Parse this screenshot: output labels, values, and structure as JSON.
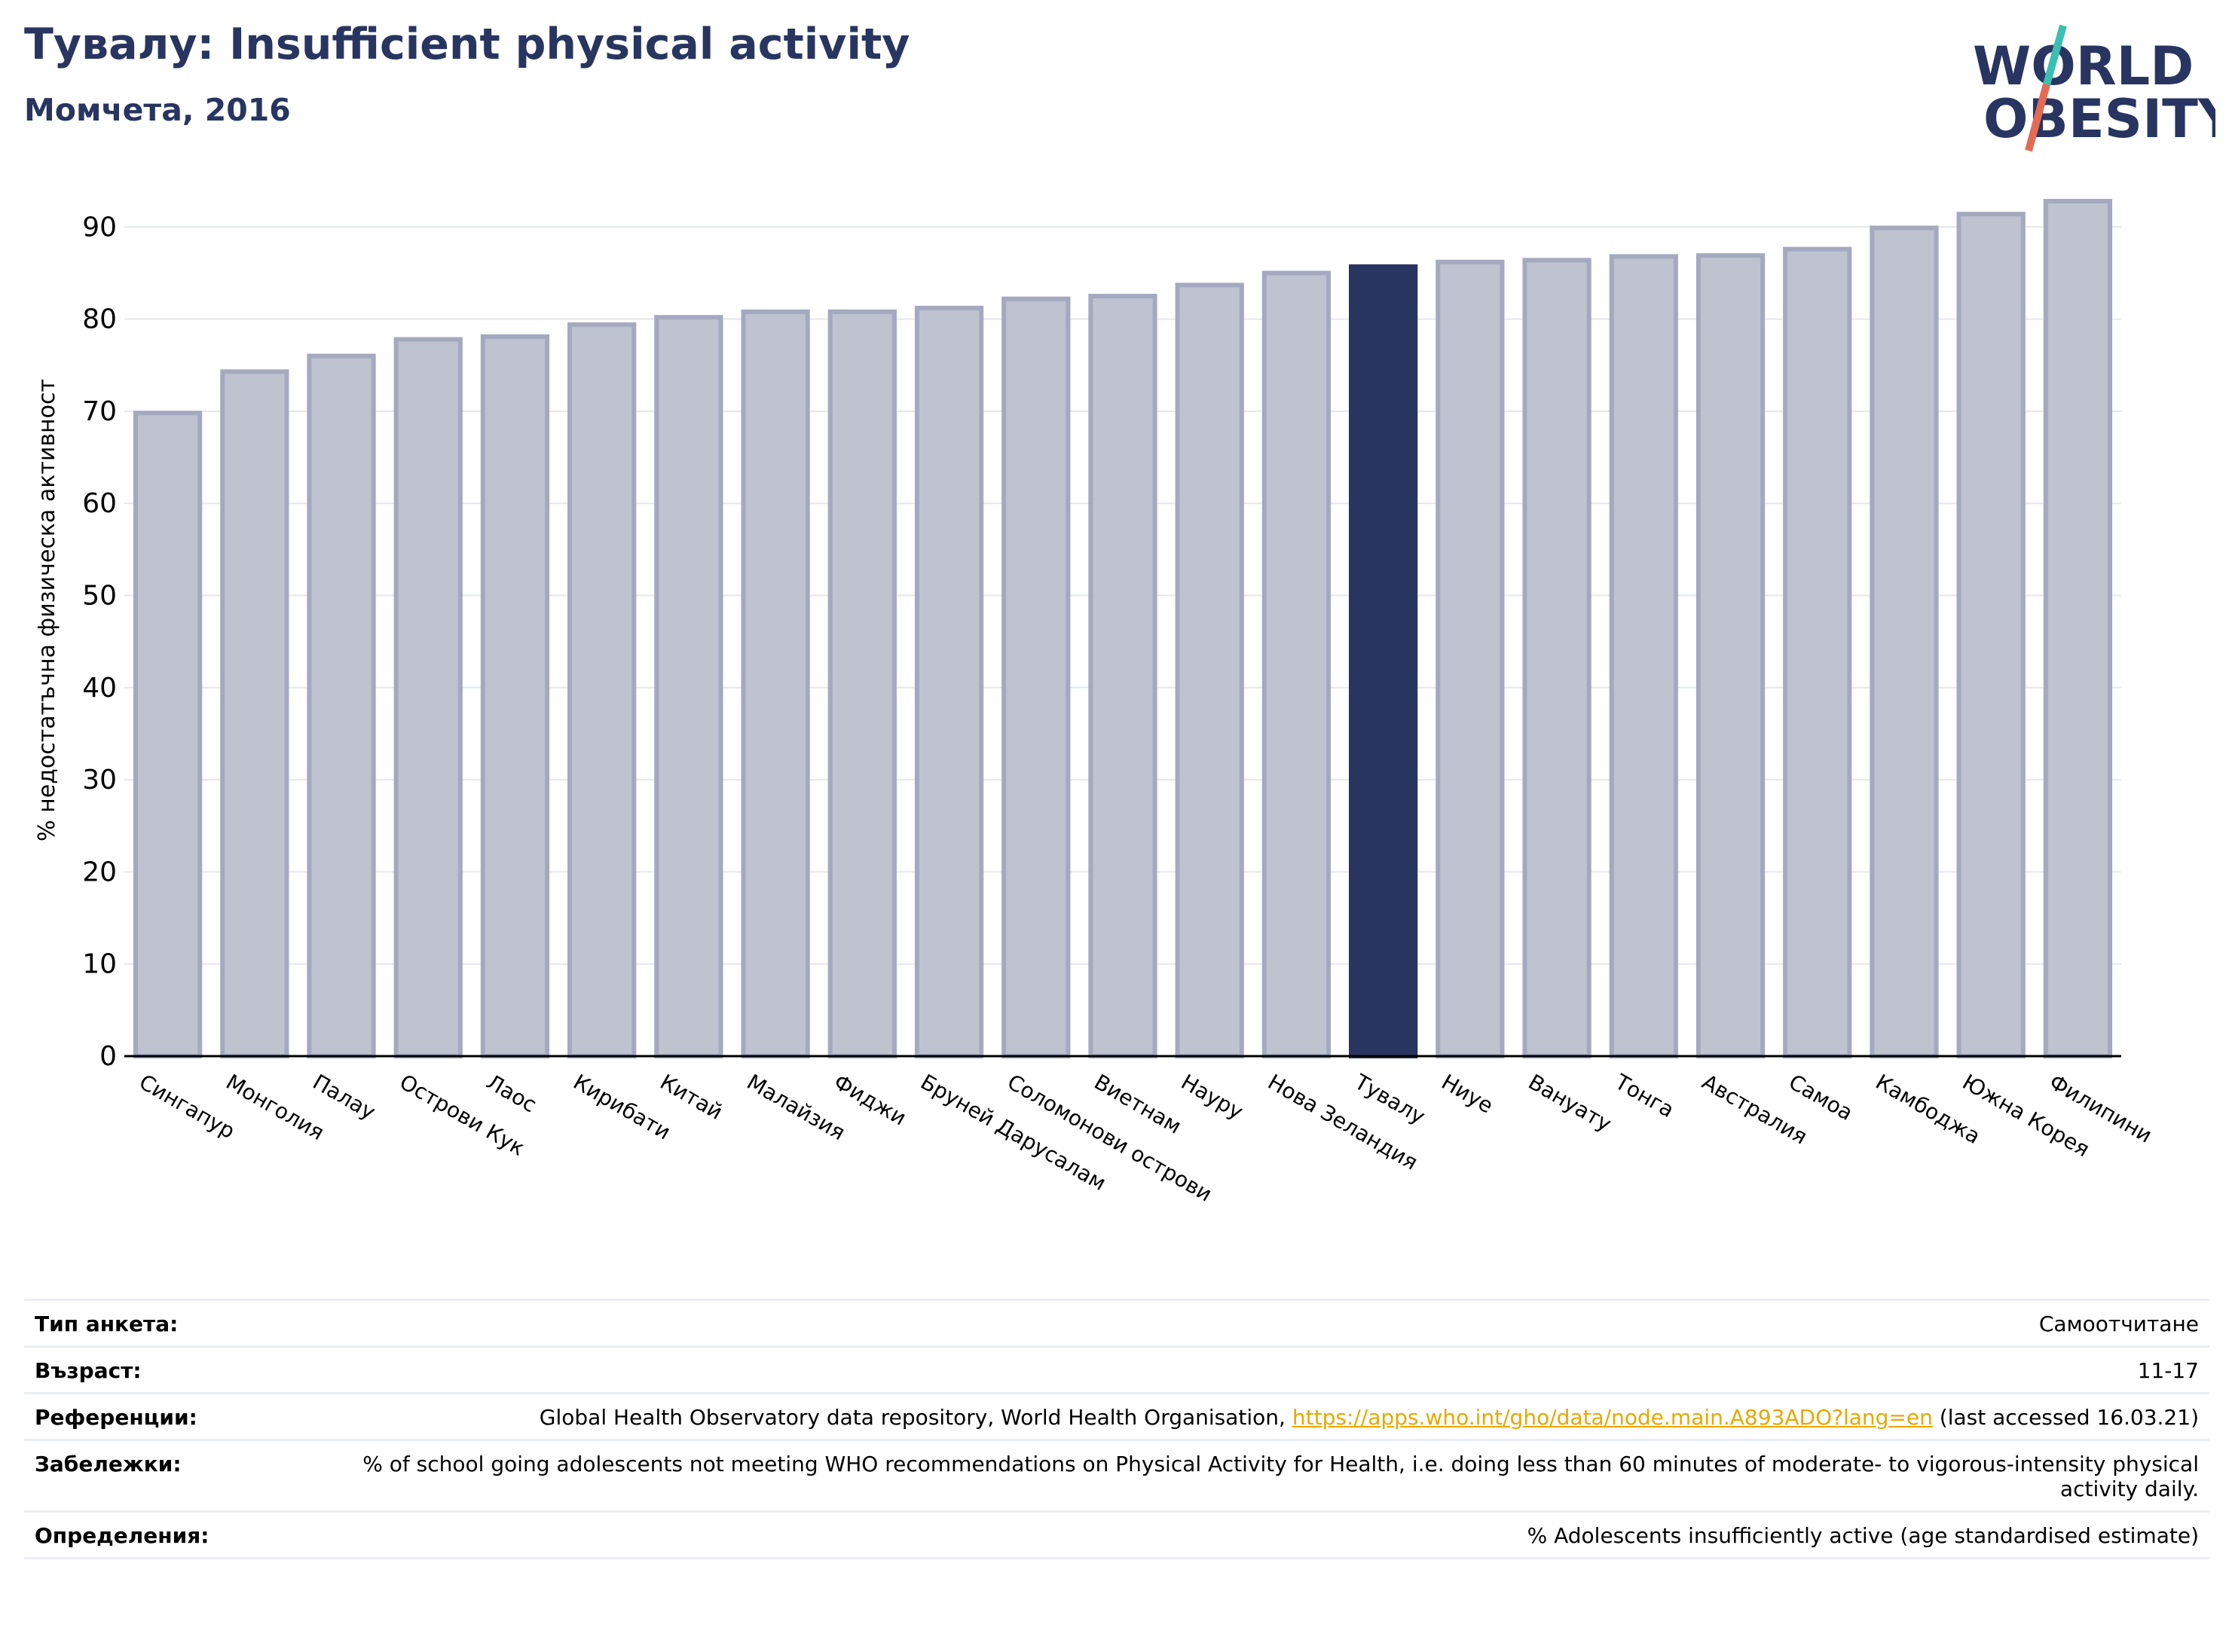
{
  "header": {
    "title": "Тувалу: Insufficient physical activity",
    "subtitle": "Момчета, 2016"
  },
  "logo": {
    "line1": "WORLD",
    "line2": "OBESITY"
  },
  "chart_data": {
    "type": "bar",
    "title": "Тувалу: Insufficient physical activity",
    "subtitle": "Момчета, 2016",
    "ylabel": "% недостатъчна физическа активност",
    "xlabel": "",
    "ylim": [
      0,
      95
    ],
    "yticks": [
      0,
      10,
      20,
      30,
      40,
      50,
      60,
      70,
      80,
      90
    ],
    "grid": true,
    "highlight": "Тувалу",
    "colors": {
      "bar": "#bfc2cf",
      "bar_edge": "#a4a9bf",
      "highlight": "#283560"
    },
    "categories": [
      "Сингапур",
      "Монголия",
      "Палау",
      "Острови Кук",
      "Лаос",
      "Кирибати",
      "Китай",
      "Малайзия",
      "Фиджи",
      "Бруней Дарусалам",
      "Соломонови острови",
      "Виетнам",
      "Науру",
      "Нова Зеландия",
      "Тувалу",
      "Ниуе",
      "Вануату",
      "Тонга",
      "Австралия",
      "Самоа",
      "Камбоджа",
      "Южна Корея",
      "Филипини"
    ],
    "values": [
      69.8,
      74.3,
      76.0,
      77.8,
      78.1,
      79.4,
      80.2,
      80.8,
      80.8,
      81.2,
      82.2,
      82.5,
      83.7,
      85.0,
      85.7,
      86.2,
      86.4,
      86.8,
      86.9,
      87.6,
      89.9,
      91.4,
      92.8
    ]
  },
  "info": {
    "survey_label": "Тип анкета:",
    "survey_value": "Самоотчитане",
    "age_label": "Възраст:",
    "age_value": "11-17",
    "ref_label": "Референции:",
    "ref_text_before": "Global Health Observatory data repository, World Health Organisation,",
    "ref_link": "https://apps.who.int/gho/data/node.main.A893ADO?lang=en",
    "ref_text_after": "(last accessed 16.03.21)",
    "notes_label": "Забележки:",
    "notes_value": "% of school going adolescents not meeting WHO recommendations on Physical Activity for Health, i.e. doing less than 60 minutes of moderate- to vigorous-intensity physical activity daily.",
    "def_label": "Определения:",
    "def_value": "% Adolescents insufficiently active (age standardised estimate)"
  }
}
